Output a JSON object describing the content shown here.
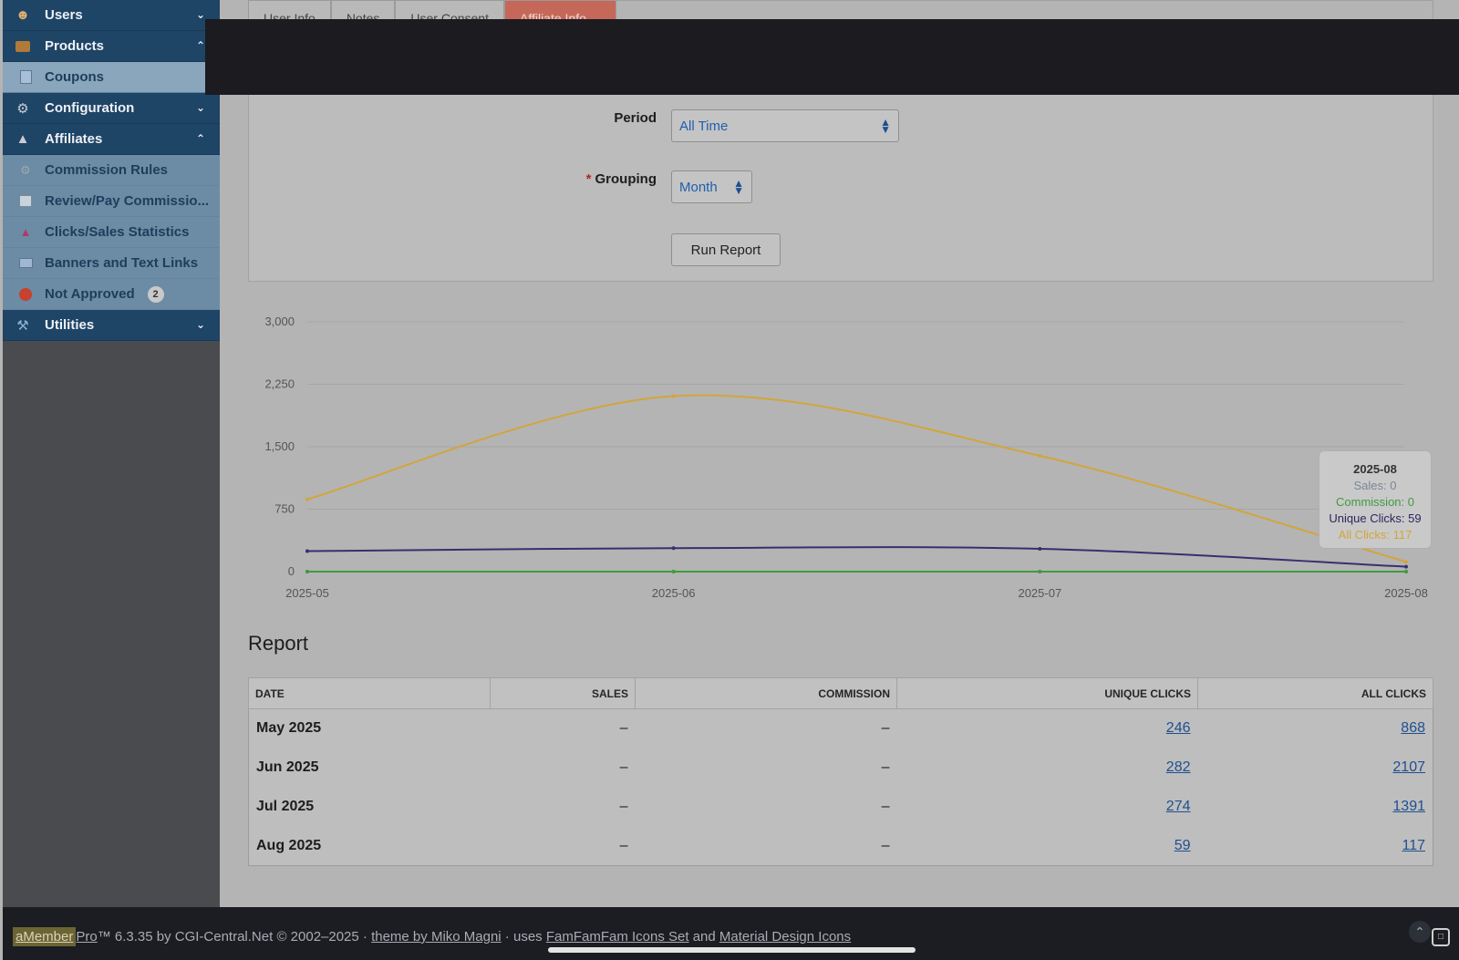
{
  "sidebar": {
    "items": [
      {
        "label": "Users",
        "icon": "user-icon",
        "chevron": "⌄"
      },
      {
        "label": "Products",
        "icon": "box-icon",
        "chevron": "⌃"
      },
      {
        "label": "Coupons",
        "icon": "coupon-icon"
      },
      {
        "label": "Configuration",
        "icon": "gear-icon",
        "chevron": "⌄"
      },
      {
        "label": "Affiliates",
        "icon": "affiliates-icon",
        "chevron": "⌃"
      },
      {
        "label": "Commission Rules",
        "icon": "cog-small-icon"
      },
      {
        "label": "Review/Pay Commissio...",
        "icon": "table-icon"
      },
      {
        "label": "Clicks/Sales Statistics",
        "icon": "chart-icon"
      },
      {
        "label": "Banners and Text Links",
        "icon": "banner-icon"
      },
      {
        "label": "Not Approved",
        "icon": "red-dot-icon",
        "badge": "2"
      },
      {
        "label": "Utilities",
        "icon": "wrench-icon",
        "chevron": "⌄"
      }
    ]
  },
  "tabs": [
    {
      "label": "User Info"
    },
    {
      "label": "Notes"
    },
    {
      "label": "User Consent"
    },
    {
      "label": "Affiliate Info ⌄"
    }
  ],
  "form": {
    "period_label": "Period",
    "period_value": "All Time",
    "grouping_label": "Grouping",
    "grouping_required": "*",
    "grouping_value": "Month",
    "run_button": "Run Report"
  },
  "chart_data": {
    "type": "line",
    "x": [
      "2025-05",
      "2025-06",
      "2025-07",
      "2025-08"
    ],
    "series": [
      {
        "name": "Sales",
        "values": [
          0,
          0,
          0,
          0
        ],
        "color": "#7b8796"
      },
      {
        "name": "Commission",
        "values": [
          0,
          0,
          0,
          0
        ],
        "color": "#3f9a3f"
      },
      {
        "name": "Unique Clicks",
        "values": [
          246,
          282,
          274,
          59
        ],
        "color": "#3a2f6e"
      },
      {
        "name": "All Clicks",
        "values": [
          868,
          2107,
          1391,
          117
        ],
        "color": "#d2a53c"
      }
    ],
    "yticks": [
      "0",
      "750",
      "1,500",
      "2,250",
      "3,000"
    ],
    "ylim": [
      0,
      3000
    ],
    "grid": true
  },
  "tooltip": {
    "title": "2025-08",
    "sales": "Sales: 0",
    "commission": "Commission: 0",
    "unique": "Unique Clicks: 59",
    "all": "All Clicks: 117"
  },
  "report": {
    "title": "Report",
    "columns": [
      "Date",
      "Sales",
      "Commission",
      "Unique Clicks",
      "All Clicks"
    ],
    "rows": [
      [
        "May 2025",
        "–",
        "–",
        "246",
        "868"
      ],
      [
        "Jun 2025",
        "–",
        "–",
        "282",
        "2107"
      ],
      [
        "Jul 2025",
        "–",
        "–",
        "274",
        "1391"
      ],
      [
        "Aug 2025",
        "–",
        "–",
        "59",
        "117"
      ]
    ]
  },
  "footer": {
    "brand": "aMember",
    "pro": "Pro",
    "version": "™ 6.3.35 by CGI-Central.Net © 2002–2025 · ",
    "theme_link": "theme by Miko Magni",
    "uses": " · uses ",
    "icons_link": "FamFamFam Icons Set",
    "and": " and ",
    "material_link": "Material Design Icons"
  }
}
